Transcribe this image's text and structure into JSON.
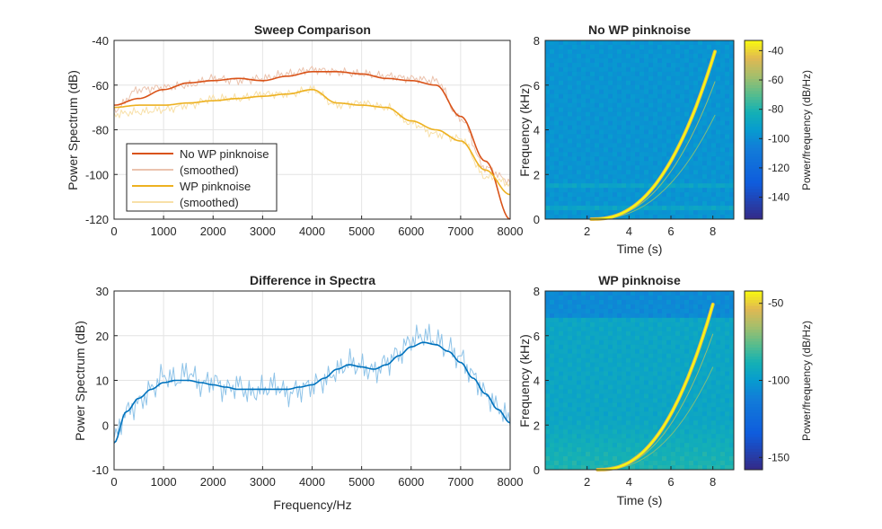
{
  "figure": {
    "colors": {
      "no_wp": "#D95319",
      "no_wp_smoothed": "#EBC3AE",
      "wp": "#EDB120",
      "wp_smoothed": "#F8E0A8",
      "difference": "#0072BD",
      "difference_raw": "#8EC3E8",
      "axes": "#262626",
      "grid": "#E4E4E4"
    }
  },
  "chart_data": [
    {
      "id": "sweep",
      "type": "line",
      "title": "Sweep Comparison",
      "xlabel": "",
      "ylabel": "Power Spectrum (dB)",
      "xlim": [
        0,
        8000
      ],
      "ylim": [
        -120,
        -40
      ],
      "xticks": [
        "0",
        "1000",
        "2000",
        "3000",
        "4000",
        "5000",
        "6000",
        "7000",
        "8000"
      ],
      "yticks": [
        "-40",
        "-60",
        "-80",
        "-100",
        "-120"
      ],
      "grid": true,
      "legend_position": "lower-left",
      "series": [
        {
          "name": "No WP pinknoise",
          "color": "#D95319",
          "x": [
            0,
            500,
            1000,
            1500,
            2000,
            2500,
            3000,
            3500,
            4000,
            4500,
            5000,
            5500,
            6000,
            6500,
            7000,
            7500,
            8000
          ],
          "y": [
            -69,
            -66,
            -62,
            -59,
            -58,
            -57,
            -58,
            -56,
            -54,
            -54,
            -55,
            -57,
            -58,
            -60,
            -74,
            -94,
            -120
          ]
        },
        {
          "name": "(smoothed)",
          "color": "#EBC3AE",
          "x": [
            0,
            500,
            1000,
            1500,
            2000,
            2500,
            3000,
            3500,
            4000,
            4500,
            5000,
            5500,
            6000,
            6500,
            7000,
            7500,
            8000
          ],
          "y": [
            -71,
            -62,
            -61,
            -60,
            -57,
            -58,
            -57,
            -55,
            -53,
            -54,
            -55,
            -56,
            -57,
            -58,
            -75,
            -97,
            -103
          ]
        },
        {
          "name": "WP pinknoise",
          "color": "#EDB120",
          "x": [
            0,
            500,
            1000,
            1500,
            2000,
            2500,
            3000,
            3500,
            4000,
            4500,
            5000,
            5500,
            6000,
            6500,
            7000,
            7500,
            8000
          ],
          "y": [
            -70,
            -69,
            -69,
            -68,
            -67,
            -66,
            -65,
            -64,
            -62,
            -68,
            -69,
            -70,
            -76,
            -80,
            -85,
            -98,
            -109
          ]
        },
        {
          "name": "(smoothed)",
          "color": "#F8E0A8",
          "x": [
            0,
            500,
            1000,
            1500,
            2000,
            2500,
            3000,
            3500,
            4000,
            4500,
            5000,
            5500,
            6000,
            6500,
            7000,
            7500,
            8000
          ],
          "y": [
            -73,
            -72,
            -71,
            -69,
            -66,
            -66,
            -64,
            -64,
            -62,
            -69,
            -68,
            -70,
            -77,
            -82,
            -84,
            -101,
            -104
          ]
        }
      ]
    },
    {
      "id": "difference",
      "type": "line",
      "title": "Difference in Spectra",
      "xlabel": "Frequency/Hz",
      "ylabel": "Power Spectrum (dB)",
      "xlim": [
        0,
        8000
      ],
      "ylim": [
        -10,
        30
      ],
      "xticks": [
        "0",
        "1000",
        "2000",
        "3000",
        "4000",
        "5000",
        "6000",
        "7000",
        "8000"
      ],
      "yticks": [
        "30",
        "20",
        "10",
        "0",
        "-10"
      ],
      "grid": true,
      "series": [
        {
          "name": "",
          "color": "#8EC3E8",
          "x": [
            0,
            250,
            500,
            750,
            1000,
            1250,
            1500,
            1750,
            2000,
            2250,
            2500,
            2750,
            3000,
            3250,
            3500,
            3750,
            4000,
            4250,
            4500,
            4750,
            5000,
            5250,
            5500,
            5750,
            6000,
            6250,
            6500,
            6750,
            7000,
            7250,
            7500,
            7750,
            8000
          ],
          "y": [
            -3,
            3,
            5,
            8,
            11,
            10,
            12,
            9,
            10,
            8,
            9,
            7,
            8,
            9,
            7,
            8,
            9,
            10,
            12,
            14,
            13,
            12,
            14,
            16,
            19,
            20,
            19,
            17,
            15,
            11,
            7,
            4,
            1
          ]
        },
        {
          "name": "",
          "color": "#0072BD",
          "x": [
            0,
            250,
            500,
            750,
            1000,
            1250,
            1500,
            1750,
            2000,
            2250,
            2500,
            2750,
            3000,
            3250,
            3500,
            3750,
            4000,
            4250,
            4500,
            4750,
            5000,
            5250,
            5500,
            5750,
            6000,
            6250,
            6500,
            6750,
            7000,
            7250,
            7500,
            7750,
            8000
          ],
          "y": [
            -4,
            3,
            6,
            8,
            9.5,
            10,
            10,
            9.5,
            9,
            8.5,
            8,
            8,
            8,
            8,
            8,
            8.5,
            9,
            10.5,
            12.5,
            13.5,
            13,
            12.5,
            13.5,
            15.5,
            17.5,
            18.5,
            18,
            16.5,
            14,
            10.5,
            7,
            3.5,
            0.5
          ]
        }
      ]
    },
    {
      "id": "spec_nowp",
      "type": "heatmap",
      "title": "No WP pinknoise",
      "xlabel": "Time (s)",
      "ylabel": "Frequency (kHz)",
      "xlim": [
        0,
        9
      ],
      "ylim": [
        0,
        8
      ],
      "xticks": [
        "2",
        "4",
        "6",
        "8"
      ],
      "yticks": [
        "0",
        "2",
        "4",
        "6",
        "8"
      ],
      "colorbar_label": "Power/frequency (dB/Hz)",
      "colorbar_ticks": [
        "-40",
        "-60",
        "-80",
        "-100",
        "-120",
        "-140"
      ],
      "clim": [
        -155,
        -33
      ],
      "background_level": -97,
      "sweep_start_s": 2.2,
      "sweep_end_s": 8.1,
      "sweep_end_khz": 7.5
    },
    {
      "id": "spec_wp",
      "type": "heatmap",
      "title": "WP pinknoise",
      "xlabel": "Time (s)",
      "ylabel": "Frequency (kHz)",
      "xlim": [
        0,
        9
      ],
      "ylim": [
        0,
        8
      ],
      "xticks": [
        "2",
        "4",
        "6",
        "8"
      ],
      "yticks": [
        "0",
        "2",
        "4",
        "6",
        "8"
      ],
      "colorbar_label": "Power/frequency (dB/Hz)",
      "colorbar_ticks": [
        "-50",
        "-100",
        "-150"
      ],
      "clim": [
        -158,
        -42
      ],
      "background_level": -95,
      "sweep_start_s": 2.5,
      "sweep_end_s": 8.0,
      "sweep_end_khz": 7.4
    }
  ]
}
